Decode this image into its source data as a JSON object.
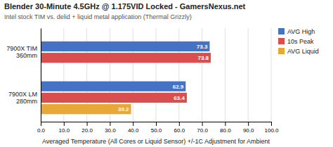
{
  "chart_data": {
    "type": "bar",
    "orientation": "horizontal",
    "title": "Blender 30-Minute 4.5GHz @ 1.175VID Locked - GamersNexus.net",
    "subtitle": "Intel stock TIM vs. delid + liquid metal application (Thermal Grizzly)",
    "xlabel": "Averaged Temperature (All Cores or Liquid Sensor) +/-1C Adjustment for Ambient",
    "categories": [
      "7900X TIM\n360mm",
      "7900X LM\n280mm"
    ],
    "series": [
      {
        "name": "AVG High",
        "color": "#4472C4",
        "values": [
          73.3,
          62.9
        ]
      },
      {
        "name": "10s Peak",
        "color": "#D94F4F",
        "values": [
          73.8,
          63.4
        ]
      },
      {
        "name": "AVG Liquid",
        "color": "#E8A838",
        "values": [
          null,
          39.2
        ]
      }
    ],
    "xlim": [
      0,
      100
    ],
    "xticks": [
      {
        "value": 0,
        "label": "0.0"
      },
      {
        "value": 10,
        "label": "10.0"
      },
      {
        "value": 20,
        "label": "20.0"
      },
      {
        "value": 30,
        "label": "30.0"
      },
      {
        "value": 40,
        "label": "40.0"
      },
      {
        "value": 50,
        "label": "50.0"
      },
      {
        "value": 60,
        "label": "60.0"
      },
      {
        "value": 70,
        "label": "70.0"
      },
      {
        "value": 80,
        "label": "80.0"
      },
      {
        "value": 90,
        "label": "90.0"
      },
      {
        "value": 100,
        "label": "100.0"
      }
    ],
    "grid": true,
    "legend": "right",
    "data_labels": true
  }
}
